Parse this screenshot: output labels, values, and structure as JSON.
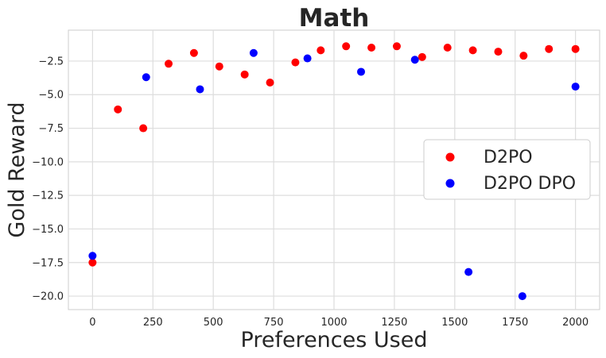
{
  "chart_data": {
    "type": "scatter",
    "title": "Math",
    "xlabel": "Preferences Used",
    "ylabel": "Gold Reward",
    "xlim": [
      -100,
      2100
    ],
    "ylim": [
      -21,
      -0.2
    ],
    "xticks": [
      0,
      250,
      500,
      750,
      1000,
      1250,
      1500,
      1750,
      2000
    ],
    "yticks": [
      -20.0,
      -17.5,
      -15.0,
      -12.5,
      -10.0,
      -7.5,
      -5.0,
      -2.5
    ],
    "xtick_labels": [
      "0",
      "250",
      "500",
      "750",
      "1000",
      "1250",
      "1500",
      "1750",
      "2000"
    ],
    "ytick_labels": [
      "−20.0",
      "−17.5",
      "−15.0",
      "−12.5",
      "−10.0",
      "−7.5",
      "−5.0",
      "−2.5"
    ],
    "grid": true,
    "legend_position": "center-right",
    "series": [
      {
        "name": "D2PO",
        "color": "#ff0000",
        "points": [
          [
            0,
            -17.5
          ],
          [
            105,
            -6.1
          ],
          [
            210,
            -7.5
          ],
          [
            315,
            -2.7
          ],
          [
            420,
            -1.9
          ],
          [
            525,
            -2.9
          ],
          [
            630,
            -3.5
          ],
          [
            735,
            -4.1
          ],
          [
            840,
            -2.6
          ],
          [
            945,
            -1.7
          ],
          [
            1050,
            -1.4
          ],
          [
            1155,
            -1.5
          ],
          [
            1260,
            -1.4
          ],
          [
            1365,
            -2.2
          ],
          [
            1470,
            -1.5
          ],
          [
            1575,
            -1.7
          ],
          [
            1680,
            -1.8
          ],
          [
            1785,
            -2.1
          ],
          [
            1890,
            -1.6
          ],
          [
            2000,
            -1.6
          ]
        ]
      },
      {
        "name": "D2PO DPO",
        "color": "#0000ff",
        "points": [
          [
            0,
            -17.0
          ],
          [
            222,
            -3.7
          ],
          [
            445,
            -4.6
          ],
          [
            667,
            -1.9
          ],
          [
            890,
            -2.3
          ],
          [
            1112,
            -3.3
          ],
          [
            1335,
            -2.4
          ],
          [
            1557,
            -18.2
          ],
          [
            1780,
            -20.0
          ],
          [
            2000,
            -4.4
          ]
        ]
      }
    ]
  }
}
